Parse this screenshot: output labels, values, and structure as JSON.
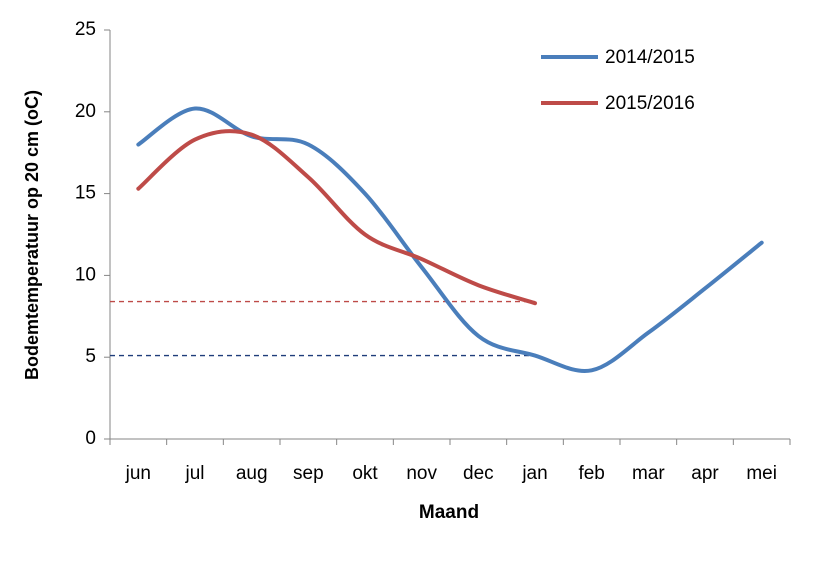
{
  "chart_data": {
    "type": "line",
    "y_label": "Bodemtemperatuur op 20 cm (oC)",
    "x_label": "Maand",
    "categories": [
      "jun",
      "jul",
      "aug",
      "sep",
      "okt",
      "nov",
      "dec",
      "jan",
      "feb",
      "mar",
      "apr",
      "mei"
    ],
    "series": [
      {
        "name": "2014/2015",
        "color": "#4a7ebb",
        "values": [
          18,
          20.2,
          18.5,
          18,
          15,
          10.5,
          6.3,
          5.1,
          4.2,
          6.5,
          9.2,
          12
        ]
      },
      {
        "name": "2015/2016",
        "color": "#be4b48",
        "values": [
          15.3,
          18.3,
          18.6,
          16,
          12.5,
          11,
          9.4,
          8.3,
          null,
          null,
          null,
          null
        ]
      }
    ],
    "reference_lines": [
      {
        "value": 8.4,
        "color": "#be4b48"
      },
      {
        "value": 5.1,
        "color": "#1f3d7a"
      }
    ],
    "ylim": [
      0,
      25
    ],
    "yticks": [
      0,
      5,
      10,
      15,
      20,
      25
    ],
    "legend": "top-right"
  }
}
